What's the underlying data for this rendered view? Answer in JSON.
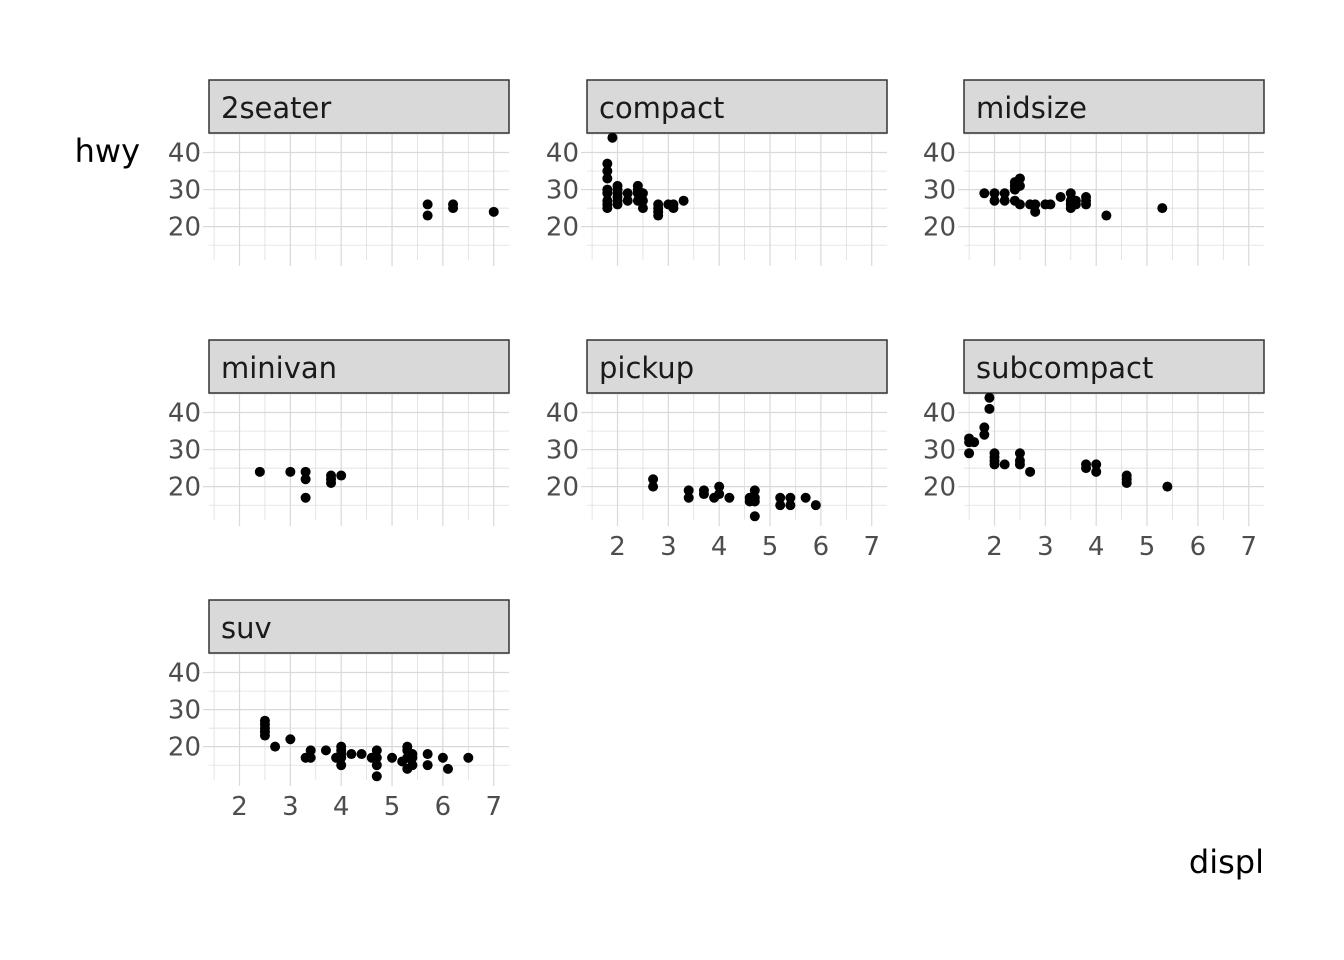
{
  "chart_data": {
    "type": "scatter",
    "facet_by": "class",
    "xlabel": "displ",
    "ylabel": "hwy",
    "xlim": [
      1.4,
      7.3
    ],
    "ylim": [
      11,
      45
    ],
    "x_ticks": [
      2,
      3,
      4,
      5,
      6,
      7
    ],
    "y_ticks": [
      20,
      30,
      40
    ],
    "grid": true,
    "colors": {
      "point": "#000000",
      "strip_fill": "#d9d9d9",
      "strip_border": "#333333",
      "grid": "#d9d9d9"
    },
    "panels": [
      {
        "name": "2seater",
        "points": [
          [
            5.7,
            26
          ],
          [
            5.7,
            23
          ],
          [
            6.2,
            26
          ],
          [
            6.2,
            25
          ],
          [
            7.0,
            24
          ]
        ]
      },
      {
        "name": "compact",
        "points": [
          [
            1.8,
            37
          ],
          [
            1.8,
            35
          ],
          [
            1.8,
            33
          ],
          [
            1.8,
            30
          ],
          [
            1.8,
            29
          ],
          [
            1.8,
            27
          ],
          [
            1.8,
            26
          ],
          [
            1.8,
            25
          ],
          [
            1.9,
            44
          ],
          [
            2.0,
            31
          ],
          [
            2.0,
            30
          ],
          [
            2.0,
            29
          ],
          [
            2.0,
            28
          ],
          [
            2.0,
            27
          ],
          [
            2.0,
            26
          ],
          [
            2.2,
            29
          ],
          [
            2.2,
            27
          ],
          [
            2.4,
            31
          ],
          [
            2.4,
            30
          ],
          [
            2.4,
            29
          ],
          [
            2.4,
            27
          ],
          [
            2.5,
            29
          ],
          [
            2.5,
            27
          ],
          [
            2.5,
            25
          ],
          [
            2.8,
            26
          ],
          [
            2.8,
            25
          ],
          [
            2.8,
            24
          ],
          [
            2.8,
            23
          ],
          [
            3.0,
            26
          ],
          [
            3.1,
            26
          ],
          [
            3.1,
            25
          ],
          [
            3.3,
            27
          ]
        ]
      },
      {
        "name": "midsize",
        "points": [
          [
            1.8,
            29
          ],
          [
            2.0,
            29
          ],
          [
            2.0,
            27
          ],
          [
            2.2,
            29
          ],
          [
            2.2,
            27
          ],
          [
            2.4,
            32
          ],
          [
            2.4,
            31
          ],
          [
            2.4,
            30
          ],
          [
            2.4,
            27
          ],
          [
            2.5,
            33
          ],
          [
            2.5,
            31
          ],
          [
            2.5,
            26
          ],
          [
            2.7,
            26
          ],
          [
            2.8,
            26
          ],
          [
            2.8,
            24
          ],
          [
            3.0,
            26
          ],
          [
            3.1,
            26
          ],
          [
            3.3,
            28
          ],
          [
            3.5,
            29
          ],
          [
            3.5,
            27
          ],
          [
            3.5,
            26
          ],
          [
            3.5,
            25
          ],
          [
            3.6,
            27
          ],
          [
            3.6,
            26
          ],
          [
            3.8,
            28
          ],
          [
            3.8,
            27
          ],
          [
            3.8,
            26
          ],
          [
            4.2,
            23
          ],
          [
            5.3,
            25
          ]
        ]
      },
      {
        "name": "minivan",
        "points": [
          [
            2.4,
            24
          ],
          [
            3.0,
            24
          ],
          [
            3.3,
            24
          ],
          [
            3.3,
            22
          ],
          [
            3.3,
            17
          ],
          [
            3.8,
            23
          ],
          [
            3.8,
            22
          ],
          [
            3.8,
            21
          ],
          [
            4.0,
            23
          ]
        ]
      },
      {
        "name": "pickup",
        "points": [
          [
            2.7,
            22
          ],
          [
            2.7,
            20
          ],
          [
            3.4,
            19
          ],
          [
            3.4,
            17
          ],
          [
            3.7,
            19
          ],
          [
            3.7,
            18
          ],
          [
            3.9,
            17
          ],
          [
            4.0,
            20
          ],
          [
            4.0,
            18
          ],
          [
            4.2,
            17
          ],
          [
            4.6,
            17
          ],
          [
            4.6,
            16
          ],
          [
            4.7,
            19
          ],
          [
            4.7,
            17
          ],
          [
            4.7,
            16
          ],
          [
            4.7,
            12
          ],
          [
            5.2,
            17
          ],
          [
            5.2,
            15
          ],
          [
            5.4,
            17
          ],
          [
            5.4,
            15
          ],
          [
            5.7,
            17
          ],
          [
            5.9,
            15
          ]
        ]
      },
      {
        "name": "subcompact",
        "points": [
          [
            1.5,
            33
          ],
          [
            1.5,
            32
          ],
          [
            1.5,
            29
          ],
          [
            1.6,
            32
          ],
          [
            1.8,
            36
          ],
          [
            1.8,
            34
          ],
          [
            1.9,
            44
          ],
          [
            1.9,
            41
          ],
          [
            2.0,
            29
          ],
          [
            2.0,
            28
          ],
          [
            2.0,
            27
          ],
          [
            2.0,
            26
          ],
          [
            2.2,
            26
          ],
          [
            2.5,
            29
          ],
          [
            2.5,
            27
          ],
          [
            2.5,
            26
          ],
          [
            2.7,
            24
          ],
          [
            3.8,
            26
          ],
          [
            3.8,
            25
          ],
          [
            4.0,
            26
          ],
          [
            4.0,
            24
          ],
          [
            4.6,
            23
          ],
          [
            4.6,
            22
          ],
          [
            4.6,
            21
          ],
          [
            5.4,
            20
          ]
        ]
      },
      {
        "name": "suv",
        "points": [
          [
            2.5,
            27
          ],
          [
            2.5,
            26
          ],
          [
            2.5,
            25
          ],
          [
            2.5,
            24
          ],
          [
            2.5,
            23
          ],
          [
            2.7,
            20
          ],
          [
            3.0,
            22
          ],
          [
            3.3,
            17
          ],
          [
            3.4,
            19
          ],
          [
            3.4,
            17
          ],
          [
            3.7,
            19
          ],
          [
            3.9,
            17
          ],
          [
            4.0,
            20
          ],
          [
            4.0,
            19
          ],
          [
            4.0,
            18
          ],
          [
            4.0,
            17
          ],
          [
            4.0,
            15
          ],
          [
            4.2,
            18
          ],
          [
            4.4,
            18
          ],
          [
            4.6,
            17
          ],
          [
            4.7,
            19
          ],
          [
            4.7,
            17
          ],
          [
            4.7,
            15
          ],
          [
            4.7,
            12
          ],
          [
            5.0,
            17
          ],
          [
            5.2,
            16
          ],
          [
            5.3,
            20
          ],
          [
            5.3,
            19
          ],
          [
            5.3,
            17
          ],
          [
            5.3,
            14
          ],
          [
            5.4,
            18
          ],
          [
            5.4,
            17
          ],
          [
            5.4,
            15
          ],
          [
            5.7,
            18
          ],
          [
            5.7,
            15
          ],
          [
            6.0,
            17
          ],
          [
            6.1,
            14
          ],
          [
            6.5,
            17
          ]
        ]
      }
    ]
  }
}
